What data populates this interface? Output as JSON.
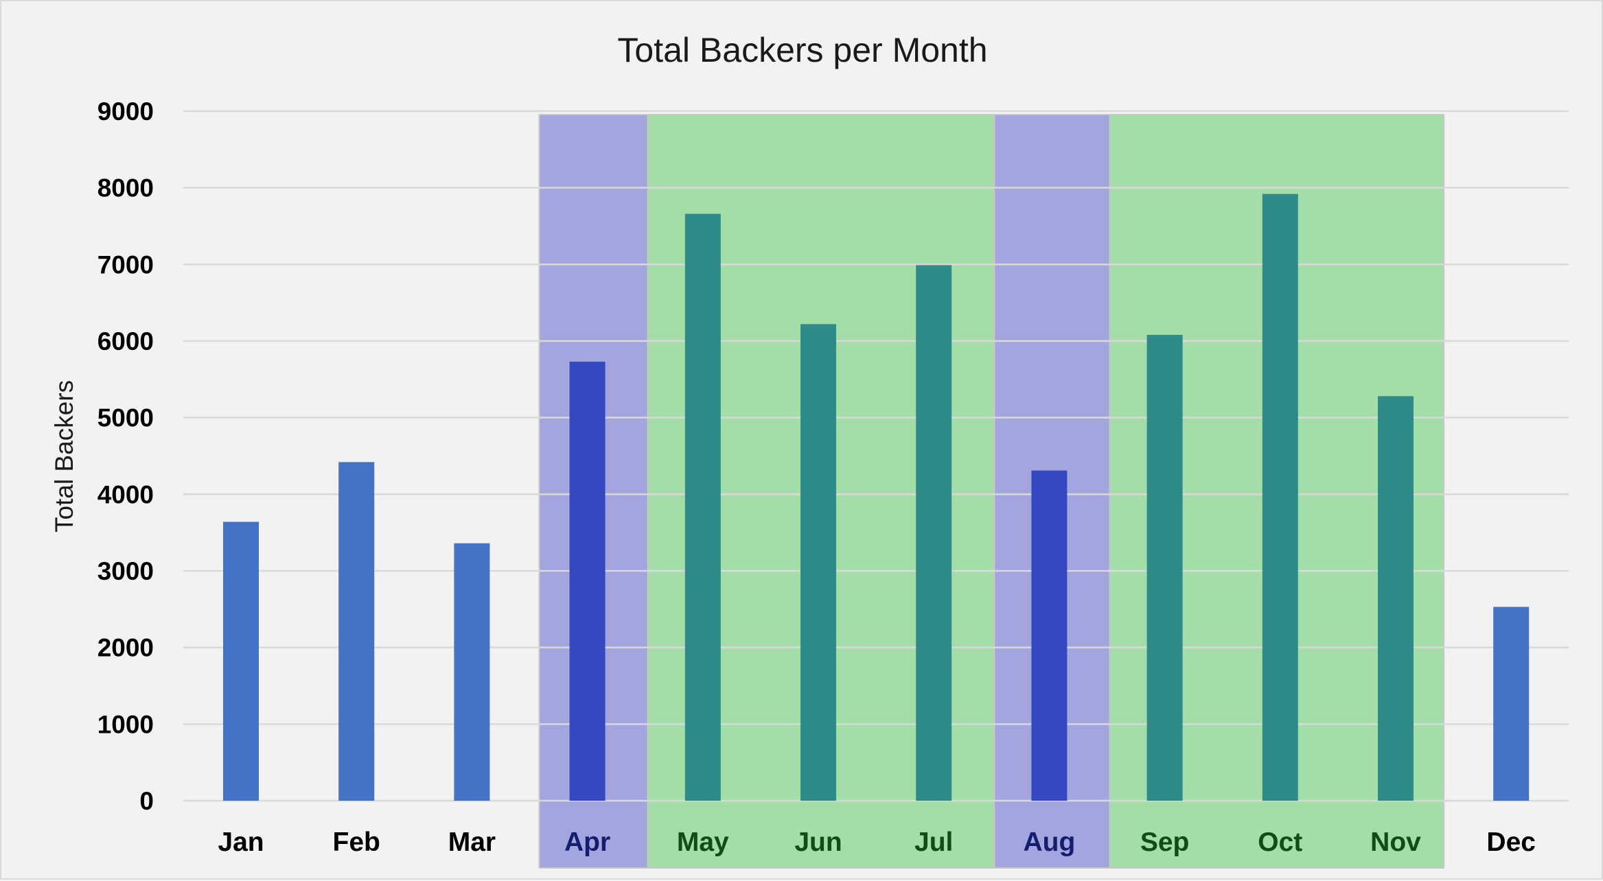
{
  "chart_data": {
    "type": "bar",
    "title": "Total Backers per Month",
    "xlabel": "",
    "ylabel": "Total Backers",
    "ylim": [
      0,
      9000
    ],
    "yticks": [
      0,
      1000,
      2000,
      3000,
      4000,
      5000,
      6000,
      7000,
      8000,
      9000
    ],
    "grid": true,
    "legend": "none",
    "categories": [
      "Jan",
      "Feb",
      "Mar",
      "Apr",
      "May",
      "Jun",
      "Jul",
      "Aug",
      "Sep",
      "Oct",
      "Nov",
      "Dec"
    ],
    "values": [
      3640,
      4420,
      3360,
      5730,
      7660,
      6220,
      6990,
      4310,
      6080,
      7920,
      5280,
      2530
    ],
    "highlights": [
      {
        "kind": "purple",
        "categories": [
          "Apr"
        ]
      },
      {
        "kind": "green",
        "categories": [
          "May",
          "Jun",
          "Jul"
        ]
      },
      {
        "kind": "purple",
        "categories": [
          "Aug"
        ]
      },
      {
        "kind": "green",
        "categories": [
          "Sep",
          "Oct",
          "Nov"
        ]
      }
    ],
    "colors": {
      "bar_default": "#4472c4",
      "bar_in_purple": "#3448c0",
      "bar_in_green": "#2e8b87",
      "band_purple": "#a3a5df",
      "band_green": "#a3dea8",
      "tick_default": "#000000",
      "tick_in_purple": "#151d6e",
      "tick_in_green": "#0e4d14",
      "gridline": "#d9d9d9"
    }
  }
}
